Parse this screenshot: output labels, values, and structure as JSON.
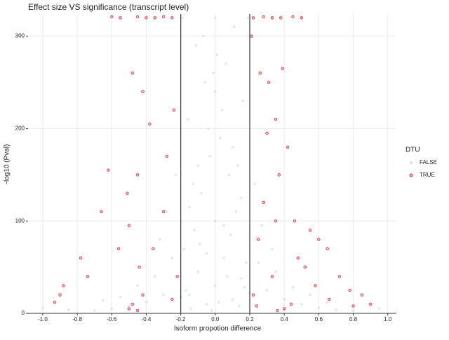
{
  "chart_data": {
    "type": "scatter",
    "title": "Effect size VS significance (transcript level)",
    "x_label": "Isoform propotion difference",
    "y_label": "-log10 (Pval)",
    "legend_title": "DTU",
    "xlim": [
      -1.085,
      1.05
    ],
    "ylim": [
      0,
      324
    ],
    "xticks": [
      {
        "value": -1,
        "label": "-1.0"
      },
      -0.8,
      -0.6,
      -0.4,
      -0.2,
      {
        "value": 0,
        "label": "0.0"
      },
      0.2,
      0.4,
      0.6,
      0.8,
      {
        "value": 1,
        "label": "1.0"
      }
    ],
    "yticks": [
      0,
      100,
      200,
      300
    ],
    "grid": true,
    "legend": "right",
    "vlines": [
      -0.2,
      0.2
    ],
    "series": [
      {
        "name": "FALSE",
        "color": "#a6d1e2",
        "x": [
          -0.15,
          -0.1,
          -0.05,
          0,
          0.05,
          0.1,
          0.15,
          -0.18,
          0.18,
          -0.12,
          0.12,
          -0.08,
          0.08,
          -0.03,
          0.03,
          -0.16,
          0.16,
          -0.06,
          0.06,
          -0.11,
          0.11,
          0,
          -0.19,
          0.19,
          -0.14,
          0.14,
          -0.02,
          0.02,
          -0.17,
          0.17,
          -0.09,
          0.09,
          -0.13,
          0.13,
          -0.04,
          0.04,
          -0.01,
          0.01,
          -0.07,
          0.07,
          -0.2,
          0.2,
          -0.1,
          0.1,
          0,
          0,
          -0.15,
          0.15,
          -0.05,
          0.05,
          -0.3,
          0.3,
          -0.4,
          0.4,
          -0.5,
          0.5,
          -0.6,
          0.6,
          -0.7,
          0.7,
          -0.25,
          0.25,
          -0.35,
          0.35,
          -0.45,
          0.45,
          -0.28,
          0.27,
          -0.23,
          0.23,
          -0.32,
          0.33,
          -0.55,
          0.55,
          -0.85,
          0.95,
          -1.0,
          0.65,
          -0.65,
          0.8
        ],
        "values": [
          20,
          45,
          10,
          30,
          60,
          15,
          38,
          70,
          55,
          90,
          110,
          130,
          150,
          170,
          190,
          210,
          230,
          250,
          270,
          290,
          310,
          320,
          320,
          320,
          5,
          8,
          3,
          12,
          25,
          28,
          75,
          85,
          140,
          160,
          200,
          220,
          260,
          280,
          300,
          40,
          18,
          22,
          160,
          180,
          100,
          240,
          115,
          125,
          65,
          95,
          20,
          25,
          12,
          15,
          8,
          10,
          5,
          6,
          3,
          4,
          60,
          55,
          40,
          45,
          30,
          28,
          110,
          95,
          150,
          140,
          80,
          70,
          18,
          20,
          4,
          5,
          6,
          12,
          14,
          3
        ]
      },
      {
        "name": "TRUE",
        "color": "#e0262b",
        "x": [
          -0.25,
          -0.3,
          -0.35,
          -0.4,
          -0.45,
          -0.55,
          -0.6,
          0.22,
          0.28,
          0.33,
          0.38,
          0.45,
          0.5,
          -0.48,
          -0.42,
          -0.38,
          -0.45,
          -0.51,
          -0.62,
          -0.66,
          -0.78,
          -0.88,
          -0.93,
          -0.9,
          -0.74,
          -0.56,
          -0.5,
          -0.44,
          -0.48,
          -0.5,
          -0.45,
          -0.42,
          -0.36,
          -0.3,
          -0.28,
          -0.24,
          -0.22,
          -0.25,
          0.21,
          0.26,
          0.31,
          0.39,
          0.35,
          0.42,
          0.3,
          0.37,
          0.28,
          0.46,
          0.55,
          0.6,
          0.65,
          0.72,
          0.78,
          0.85,
          0.9,
          0.8,
          0.66,
          0.58,
          0.52,
          0.48,
          0.44,
          0.4,
          0.36,
          0.33,
          0.25,
          0.22,
          0.24,
          0.35
        ],
        "values": [
          320,
          321,
          320,
          320,
          321,
          320,
          321,
          320,
          321,
          320,
          320,
          321,
          320,
          260,
          240,
          205,
          150,
          130,
          155,
          110,
          60,
          30,
          12,
          20,
          40,
          70,
          95,
          50,
          10,
          5,
          3,
          20,
          70,
          110,
          170,
          220,
          40,
          15,
          300,
          260,
          250,
          265,
          210,
          180,
          195,
          150,
          120,
          100,
          90,
          80,
          70,
          40,
          25,
          20,
          10,
          8,
          15,
          30,
          50,
          60,
          10,
          5,
          3,
          40,
          80,
          20,
          8,
          100
        ]
      }
    ]
  }
}
